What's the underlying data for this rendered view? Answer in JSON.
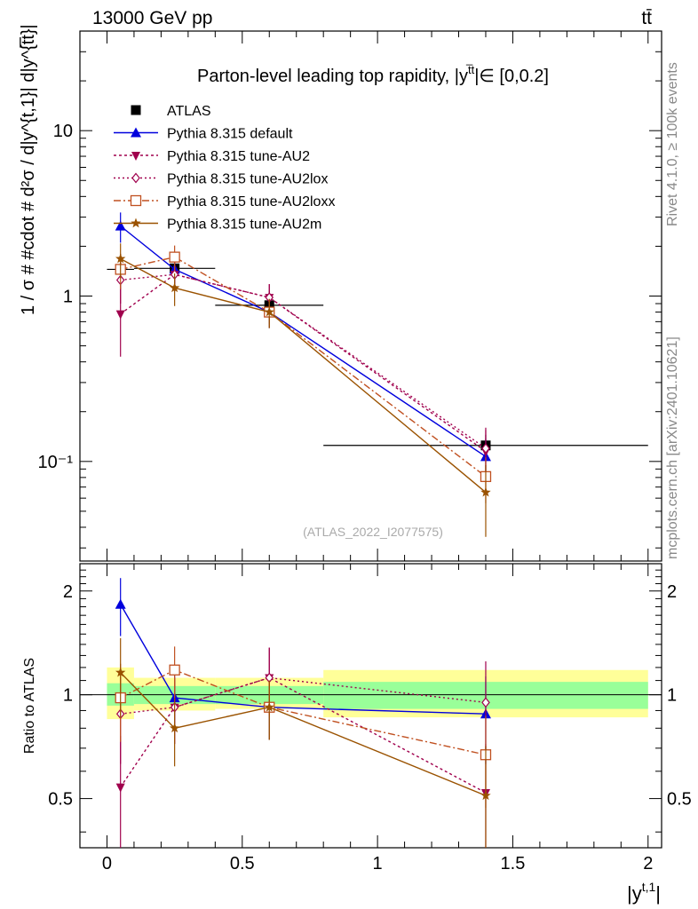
{
  "header": {
    "energy_label": "13000 GeV pp",
    "process_label": "tt̄"
  },
  "side_labels": {
    "rivet": "Rivet 4.1.0, ≥ 100k events",
    "mcplots": "mcplots.cern.ch [arXiv:2401.10621]"
  },
  "watermark": "(ATLAS_2022_I2077575)",
  "chart_data": [
    {
      "type": "line",
      "title": "Parton-level leading top rapidity, |y̅|∈ [0,0.2]",
      "title_parts": {
        "main": "Parton-level leading top rapidity, |y",
        "sup": "t̅t",
        "tail": "|∈ [0,0.2]"
      },
      "xlabel": "|y^{t,1}|",
      "ylabel": "1 / σ # #cdot # d²σ / d|y^{t,1}| d|y^{t̅t}|",
      "ylabel_text": "1 / σ # #cdot # d",
      "yscale": "log",
      "xlim": [
        -0.1,
        2.05
      ],
      "ylim": [
        0.025,
        40
      ],
      "y_ticks": [
        {
          "value": 0.1,
          "label": "10⁻¹"
        },
        {
          "value": 1,
          "label": "1"
        },
        {
          "value": 10,
          "label": "10"
        }
      ],
      "series": [
        {
          "name": "ATLAS",
          "color": "#000000",
          "marker": "square",
          "dash": "none",
          "x": [
            0.05,
            0.25,
            0.6,
            1.4
          ],
          "values": [
            1.45,
            1.47,
            0.88,
            0.125
          ],
          "err": [
            0.35,
            0.3,
            0.2,
            0.02
          ],
          "xerr": [
            0.05,
            0.15,
            0.2,
            0.6
          ]
        },
        {
          "name": "Pythia 8.315 default",
          "color": "#0000dd",
          "marker": "triangle-up",
          "dash": "none",
          "x": [
            0.05,
            0.25,
            0.6,
            1.4
          ],
          "values": [
            2.65,
            1.45,
            0.8,
            0.107
          ],
          "err": [
            0.55,
            0.3,
            0.16,
            0.03
          ]
        },
        {
          "name": "Pythia 8.315 tune-AU2",
          "color": "#a0004d",
          "marker": "triangle-down",
          "dash": "3,3",
          "x": [
            0.05,
            0.25,
            0.6,
            1.4
          ],
          "values": [
            0.78,
            1.35,
            0.98,
            0.115
          ],
          "err": [
            0.35,
            0.28,
            0.2,
            0.04
          ]
        },
        {
          "name": "Pythia 8.315 tune-AU2lox",
          "color": "#a0004d",
          "marker": "diamond-open",
          "dash": "2,3",
          "x": [
            0.05,
            0.25,
            0.6,
            1.4
          ],
          "values": [
            1.25,
            1.35,
            0.98,
            0.12
          ],
          "err": [
            0.35,
            0.28,
            0.2,
            0.04
          ]
        },
        {
          "name": "Pythia 8.315 tune-AU2loxx",
          "color": "#c05020",
          "marker": "square-open",
          "dash": "8,3,2,3",
          "x": [
            0.05,
            0.25,
            0.6,
            1.4
          ],
          "values": [
            1.45,
            1.72,
            0.8,
            0.081
          ],
          "err": [
            0.35,
            0.3,
            0.16,
            0.025
          ]
        },
        {
          "name": "Pythia 8.315 tune-AU2m",
          "color": "#9a5200",
          "marker": "star",
          "dash": "none",
          "x": [
            0.05,
            0.25,
            0.6,
            1.4
          ],
          "values": [
            1.68,
            1.12,
            0.8,
            0.065
          ],
          "err": [
            0.4,
            0.25,
            0.16,
            0.03
          ]
        }
      ]
    },
    {
      "type": "line",
      "title": "",
      "xlabel": "|y^{t,1}|",
      "ylabel": "Ratio to ATLAS",
      "yscale": "log",
      "xlim": [
        -0.1,
        2.05
      ],
      "ylim": [
        0.36,
        2.4
      ],
      "x_ticks": [
        0,
        0.5,
        1,
        1.5,
        2
      ],
      "y_ticks": [
        0.5,
        1,
        2
      ],
      "bands": [
        {
          "x0": 0.0,
          "x1": 0.1,
          "inner": [
            0.93,
            1.08
          ],
          "outer": [
            0.85,
            1.2
          ]
        },
        {
          "x0": 0.1,
          "x1": 0.4,
          "inner": [
            0.94,
            1.06
          ],
          "outer": [
            0.9,
            1.12
          ]
        },
        {
          "x0": 0.4,
          "x1": 0.8,
          "inner": [
            0.94,
            1.06
          ],
          "outer": [
            0.91,
            1.12
          ]
        },
        {
          "x0": 0.8,
          "x1": 2.0,
          "inner": [
            0.91,
            1.09
          ],
          "outer": [
            0.86,
            1.18
          ]
        }
      ],
      "series": [
        {
          "name": "Pythia 8.315 default",
          "x": [
            0.05,
            0.25,
            0.6,
            1.4
          ],
          "values": [
            1.83,
            0.98,
            0.92,
            0.88
          ],
          "err": [
            0.35,
            0.2,
            0.18,
            0.25
          ]
        },
        {
          "name": "Pythia 8.315 tune-AU2",
          "x": [
            0.05,
            0.25,
            0.6,
            1.4
          ],
          "values": [
            0.54,
            0.92,
            1.12,
            0.52
          ],
          "err": [
            0.22,
            0.2,
            0.25,
            0.2
          ]
        },
        {
          "name": "Pythia 8.315 tune-AU2lox",
          "x": [
            0.05,
            0.25,
            0.6,
            1.4
          ],
          "values": [
            0.88,
            0.92,
            1.12,
            0.95
          ],
          "err": [
            0.25,
            0.2,
            0.25,
            0.3
          ]
        },
        {
          "name": "Pythia 8.315 tune-AU2loxx",
          "x": [
            0.05,
            0.25,
            0.6,
            1.4
          ],
          "values": [
            0.98,
            1.18,
            0.92,
            0.67
          ],
          "err": [
            0.25,
            0.2,
            0.18,
            0.2
          ]
        },
        {
          "name": "Pythia 8.315 tune-AU2m",
          "x": [
            0.05,
            0.25,
            0.6,
            1.4
          ],
          "values": [
            1.16,
            0.8,
            0.92,
            0.51
          ],
          "err": [
            0.3,
            0.18,
            0.18,
            0.2
          ]
        }
      ]
    }
  ]
}
